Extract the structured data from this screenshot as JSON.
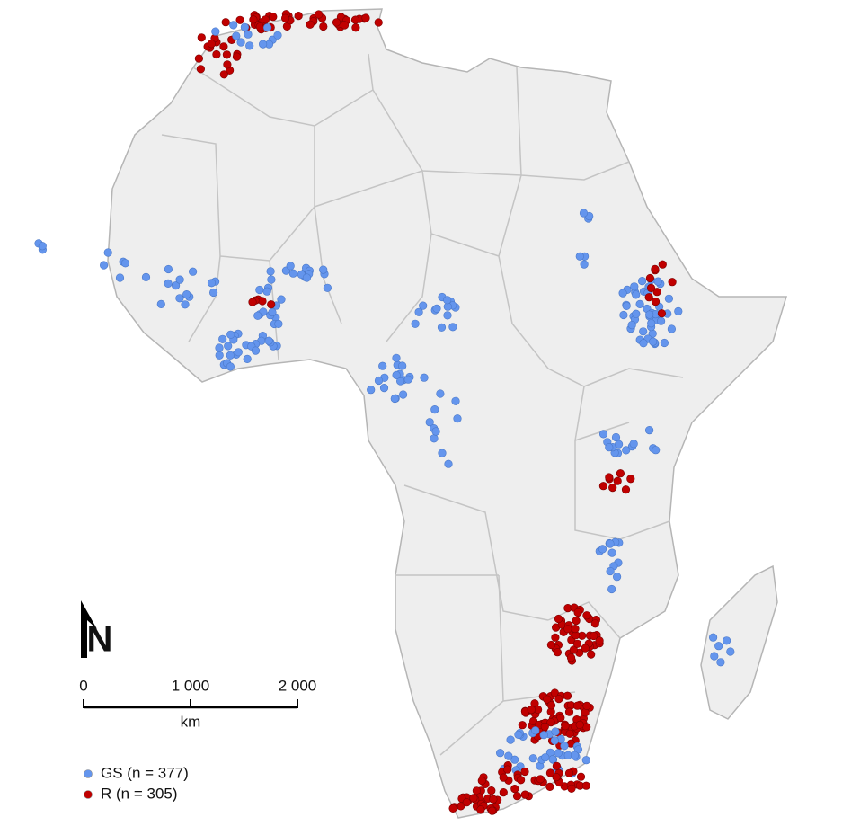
{
  "north_arrow": "N",
  "scale": {
    "ticks": [
      0,
      {
        "value": 1000,
        "label": "1 000"
      },
      {
        "value": 2000,
        "label": "2 000"
      }
    ],
    "unit": "km"
  },
  "legend": [
    {
      "label": "GS (n = 377)",
      "color": "#6495ed"
    },
    {
      "label": "R (n = 305)",
      "color": "#c00000"
    }
  ]
}
